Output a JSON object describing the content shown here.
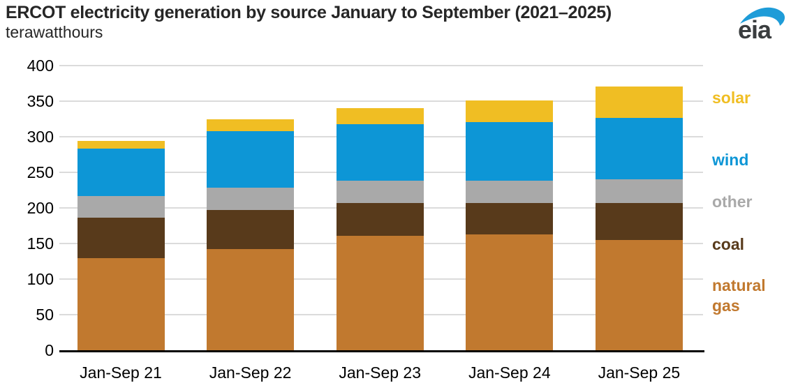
{
  "header": {
    "title": "ERCOT electricity generation by source January to September (2021–2025)",
    "subtitle": "terawatthours",
    "logo_text": "eia"
  },
  "colors": {
    "natural_gas": "#C1792F",
    "coal": "#583A1B",
    "other": "#A9A9A9",
    "wind": "#0D96D6",
    "solar": "#F0BE23",
    "gridline": "#DBDBDB",
    "axis_line": "#000000",
    "tick_text": "#000000",
    "title_text": "#262626",
    "logo_text_color": "#3A3D3F",
    "logo_swoosh": "#1E9CD8"
  },
  "chart_data": {
    "type": "bar",
    "stacked": true,
    "title": "ERCOT electricity generation by source January to September (2021–2025)",
    "ylabel": "terawatthours",
    "xlabel": "",
    "ylim": [
      0,
      400
    ],
    "yticks": [
      0,
      50,
      100,
      150,
      200,
      250,
      300,
      350,
      400
    ],
    "grid": true,
    "legend_position": "right",
    "categories": [
      "Jan-Sep 21",
      "Jan-Sep 22",
      "Jan-Sep 23",
      "Jan-Sep 24",
      "Jan-Sep 25"
    ],
    "series": [
      {
        "name": "natural gas",
        "key": "natural_gas",
        "values": [
          129,
          142,
          161,
          163,
          155
        ]
      },
      {
        "name": "coal",
        "key": "coal",
        "values": [
          57,
          55,
          46,
          44,
          52
        ]
      },
      {
        "name": "other",
        "key": "other",
        "values": [
          31,
          31,
          31,
          31,
          33
        ]
      },
      {
        "name": "wind",
        "key": "wind",
        "values": [
          66,
          80,
          80,
          83,
          86
        ]
      },
      {
        "name": "solar",
        "key": "solar",
        "values": [
          11,
          17,
          22,
          30,
          45
        ]
      }
    ]
  },
  "legend": {
    "items": [
      {
        "label": "solar",
        "key": "solar"
      },
      {
        "label": "wind",
        "key": "wind"
      },
      {
        "label": "other",
        "key": "other"
      },
      {
        "label": "coal",
        "key": "coal"
      },
      {
        "label": "natural gas",
        "key": "natural_gas"
      }
    ]
  }
}
